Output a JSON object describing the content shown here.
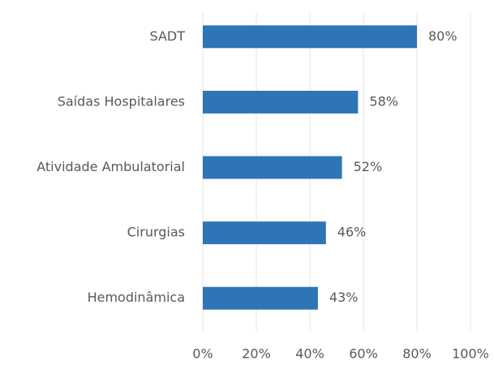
{
  "chart_data": {
    "type": "barh",
    "categories": [
      "SADT",
      "Saídas Hospitalares",
      "Atividade Ambulatorial",
      "Cirurgias",
      "Hemodinâmica"
    ],
    "values": [
      80,
      58,
      52,
      46,
      43
    ],
    "value_labels": [
      "80%",
      "58%",
      "52%",
      "46%",
      "43%"
    ],
    "color": "#2e75b6",
    "xlim": [
      0,
      100
    ],
    "xticks": [
      {
        "value": 0,
        "label": "0%"
      },
      {
        "value": 20,
        "label": "20%"
      },
      {
        "value": 40,
        "label": "40%"
      },
      {
        "value": 60,
        "label": "60%"
      },
      {
        "value": 80,
        "label": "80%"
      },
      {
        "value": 100,
        "label": "100%"
      }
    ],
    "grid": true
  }
}
